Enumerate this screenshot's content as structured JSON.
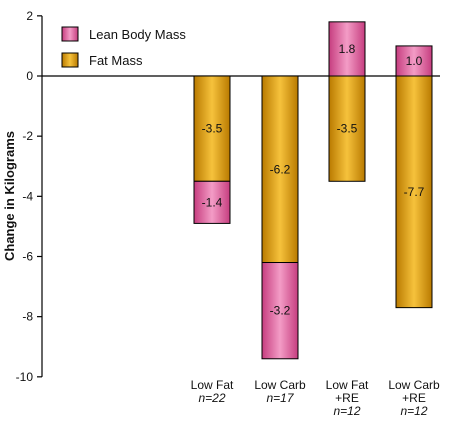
{
  "chart_data": {
    "type": "bar",
    "stacked": true,
    "ylabel": "Change in Kilograms",
    "ylim": [
      -10,
      2
    ],
    "yticks": [
      2,
      0,
      -2,
      -4,
      -6,
      -8,
      -10
    ],
    "grid": false,
    "legend_position": "top-left",
    "categories": [
      {
        "label": "Low Fat",
        "sub": "n=22"
      },
      {
        "label": "Low Carb",
        "sub": "n=17"
      },
      {
        "label": "Low Fat\n+RE",
        "sub": "n=12"
      },
      {
        "label": "Low Carb\n+RE",
        "sub": "n=12"
      }
    ],
    "series": [
      {
        "name": "Lean Body Mass",
        "color": "#e66aa6",
        "values": [
          -1.4,
          -3.2,
          1.8,
          1.0
        ]
      },
      {
        "name": "Fat Mass",
        "color": "#e2a41a",
        "values": [
          -3.5,
          -6.2,
          -3.5,
          -7.7
        ]
      }
    ]
  }
}
